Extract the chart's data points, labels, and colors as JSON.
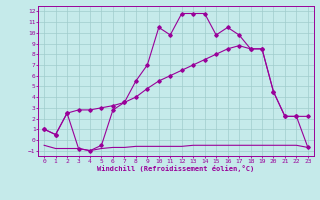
{
  "xlabel": "Windchill (Refroidissement éolien,°C)",
  "bg_color": "#c5eaea",
  "grid_color": "#a0cccc",
  "line_color": "#990099",
  "xlim": [
    -0.5,
    23.5
  ],
  "ylim": [
    -1.5,
    12.5
  ],
  "xticks": [
    0,
    1,
    2,
    3,
    4,
    5,
    6,
    7,
    8,
    9,
    10,
    11,
    12,
    13,
    14,
    15,
    16,
    17,
    18,
    19,
    20,
    21,
    22,
    23
  ],
  "yticks": [
    -1,
    0,
    1,
    2,
    3,
    4,
    5,
    6,
    7,
    8,
    9,
    10,
    11,
    12
  ],
  "line_bot_x": [
    0,
    1,
    2,
    3,
    4,
    5,
    6,
    7,
    8,
    9,
    10,
    11,
    12,
    13,
    14,
    15,
    16,
    17,
    18,
    19,
    20,
    21,
    22,
    23
  ],
  "line_bot_y": [
    -0.5,
    -0.8,
    -0.8,
    -0.8,
    -1.0,
    -0.8,
    -0.7,
    -0.7,
    -0.6,
    -0.6,
    -0.6,
    -0.6,
    -0.6,
    -0.5,
    -0.5,
    -0.5,
    -0.5,
    -0.5,
    -0.5,
    -0.5,
    -0.5,
    -0.5,
    -0.5,
    -0.7
  ],
  "line_diag_x": [
    0,
    1,
    2,
    3,
    4,
    5,
    6,
    7,
    8,
    9,
    10,
    11,
    12,
    13,
    14,
    15,
    16,
    17,
    18,
    19,
    20,
    21,
    22,
    23
  ],
  "line_diag_y": [
    1.0,
    0.5,
    2.5,
    2.8,
    2.8,
    3.0,
    3.2,
    3.5,
    4.0,
    4.8,
    5.5,
    6.0,
    6.5,
    7.0,
    7.5,
    8.0,
    8.5,
    8.8,
    8.5,
    8.5,
    4.5,
    2.2,
    2.2,
    2.2
  ],
  "line_top_x": [
    0,
    1,
    2,
    3,
    4,
    5,
    6,
    7,
    8,
    9,
    10,
    11,
    12,
    13,
    14,
    15,
    16,
    17,
    18,
    19,
    20,
    21,
    22,
    23
  ],
  "line_top_y": [
    1.0,
    0.5,
    2.5,
    -0.8,
    -1.0,
    -0.5,
    2.8,
    3.5,
    5.5,
    7.0,
    10.5,
    9.8,
    11.8,
    11.8,
    11.8,
    9.8,
    10.5,
    9.8,
    8.5,
    8.5,
    4.5,
    2.2,
    2.2,
    -0.7
  ]
}
